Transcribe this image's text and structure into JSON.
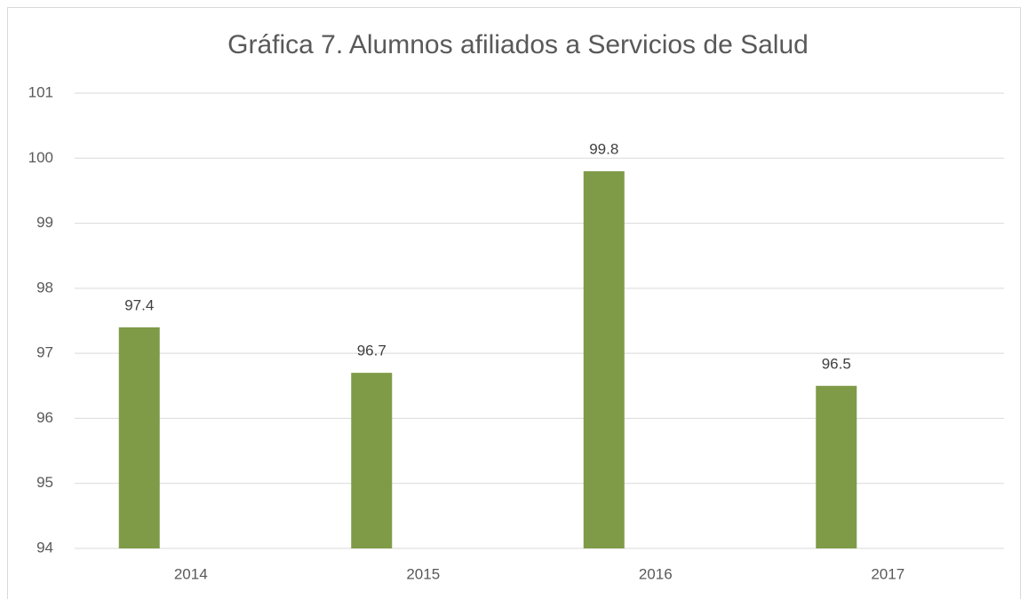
{
  "chart_data": {
    "type": "bar",
    "title": "Gráfica 7. Alumnos afiliados a Servicios de Salud",
    "categories": [
      "2014",
      "2015",
      "2016",
      "2017"
    ],
    "values": [
      97.4,
      96.7,
      99.8,
      96.5
    ],
    "color": "#7f9b48",
    "ylim": [
      94,
      101
    ],
    "yticks": [
      94,
      95,
      96,
      97,
      98,
      99,
      100,
      101
    ],
    "grid": true
  }
}
